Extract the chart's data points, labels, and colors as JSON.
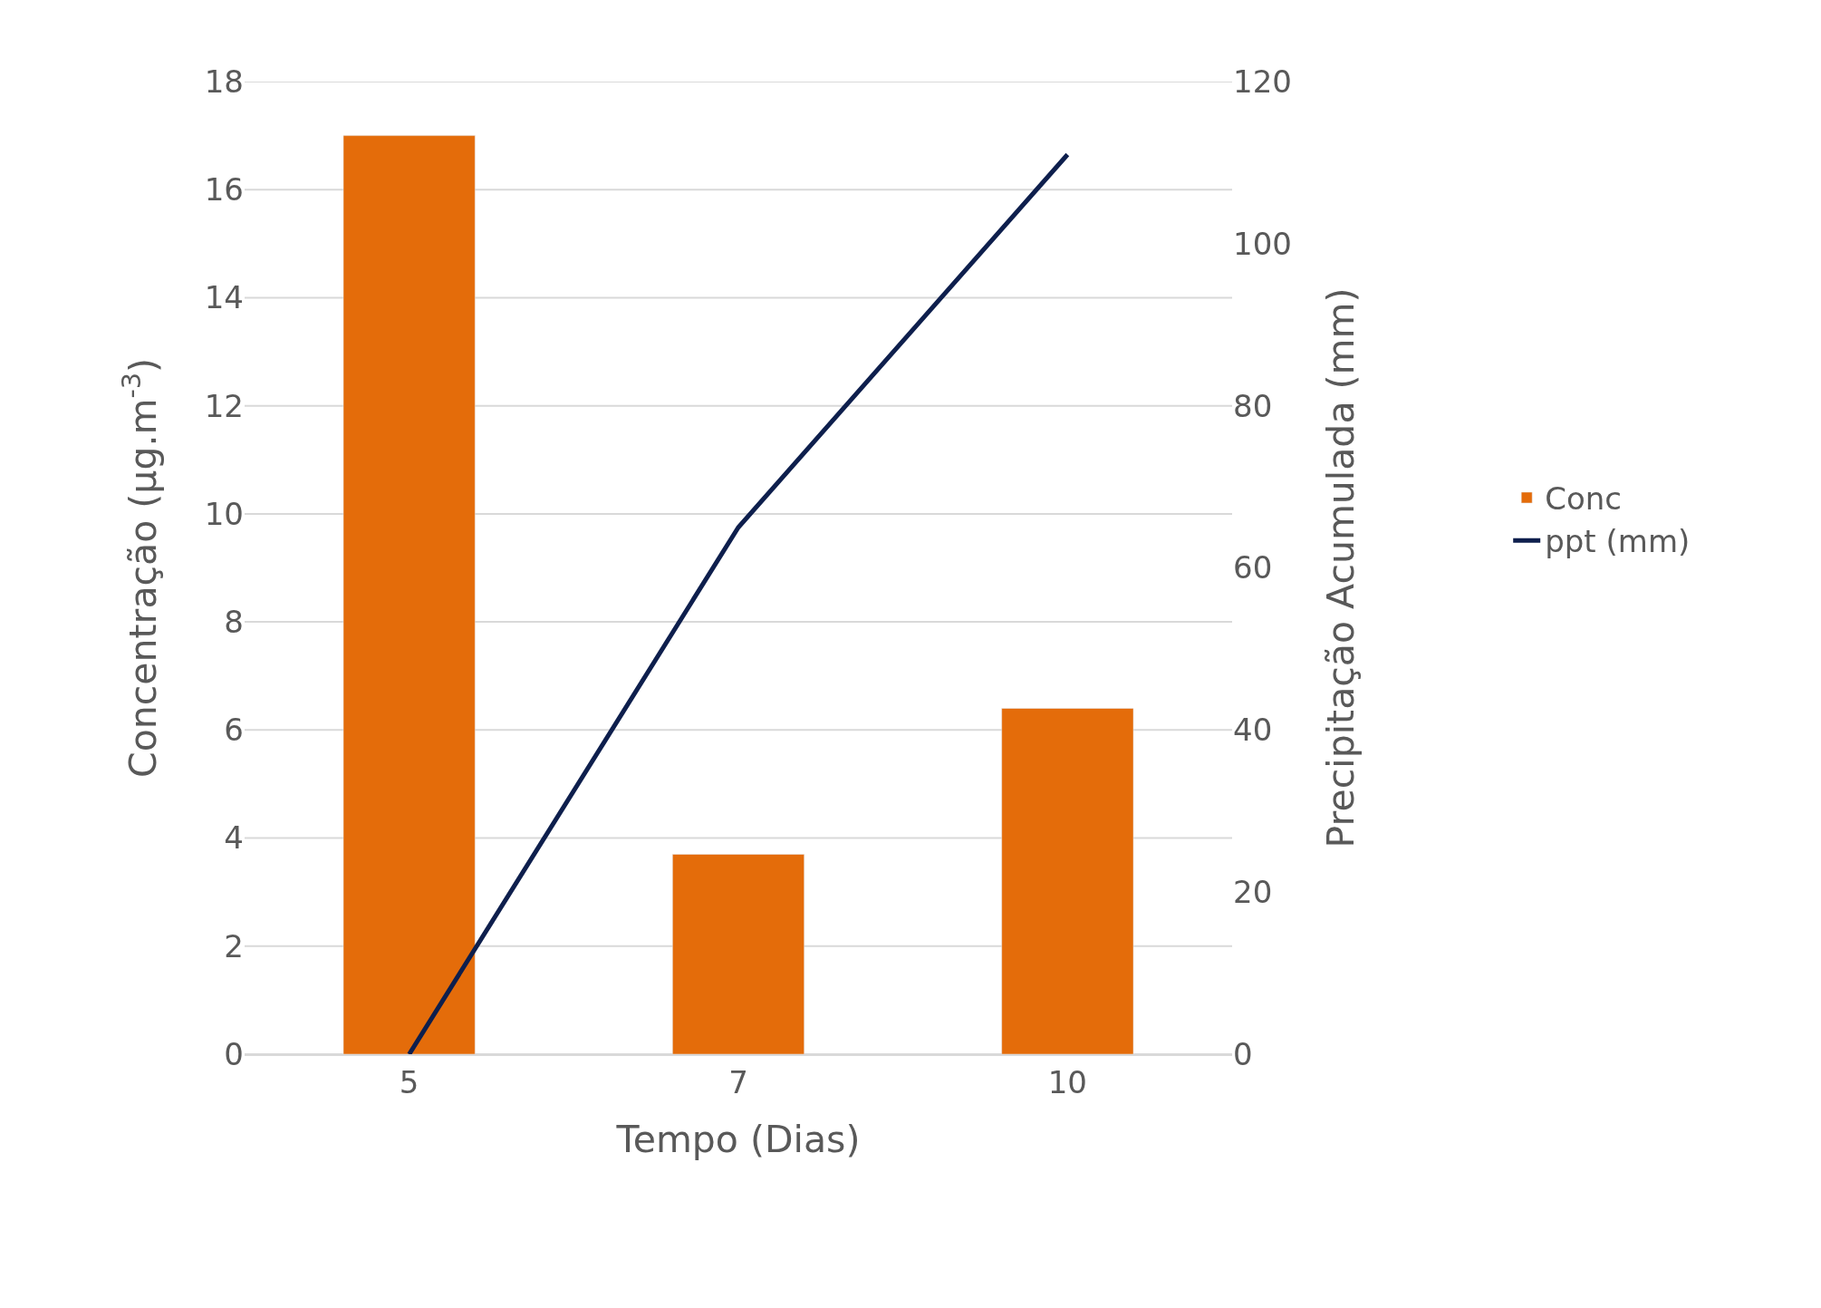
{
  "chart_data": {
    "type": "bar",
    "xlabel": "Tempo (Dias)",
    "ylabel": "Concentração (µg.m$^{-3}$)",
    "y2label": "Precipitação Acumulada (mm)",
    "categories": [
      "5",
      "7",
      "10"
    ],
    "series": [
      {
        "name": "Conc",
        "color": "#e46c0a",
        "values": [
          17,
          3.7,
          6.4
        ]
      },
      {
        "name": "ppt (mm)",
        "type": "line",
        "axis": "y2",
        "color": "#0e1f4d",
        "values": [
          0,
          65,
          111
        ],
        "marker": "none",
        "line_style": "solid"
      }
    ],
    "ylim": [
      0,
      18
    ],
    "yticks": [
      0,
      2,
      4,
      6,
      8,
      10,
      12,
      14,
      16,
      18
    ],
    "y2lim": [
      0,
      120
    ],
    "y2ticks": [
      0,
      20,
      40,
      60,
      80,
      100,
      120
    ],
    "grid": "y",
    "legend": "right"
  }
}
